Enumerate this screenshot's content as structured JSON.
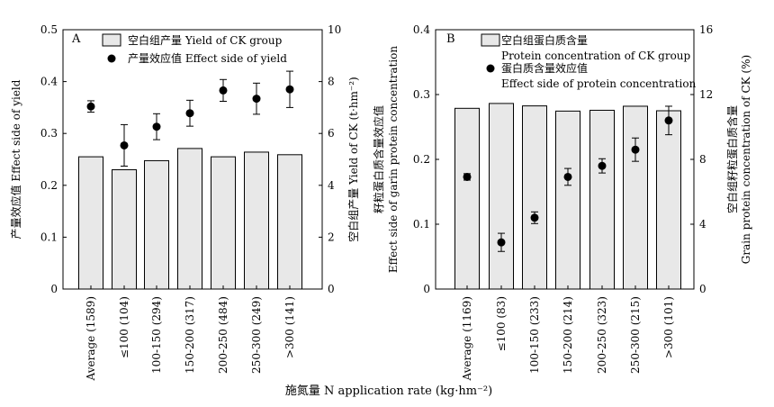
{
  "figure": {
    "xlabel": "施氮量 N application rate (kg·hm⁻²)",
    "colors": {
      "bar_fill": "#e8e8e8",
      "bar_stroke": "#000000",
      "point": "#000000"
    }
  },
  "chart_data": [
    {
      "type": "bar",
      "panel_label": "A",
      "categories": [
        "Average (1589)",
        "≤100 (104)",
        "100-150 (294)",
        "150-200 (317)",
        "200-250 (484)",
        "250-300 (249)",
        ">300 (141)"
      ],
      "ylabel_left": "产量效应值 Effect side of yield",
      "ylabel_right": "空白组产量 Yield of CK (t·hm⁻²)",
      "ylim_left": [
        0,
        0.5
      ],
      "yticks_left": [
        0,
        0.1,
        0.2,
        0.3,
        0.4,
        0.5
      ],
      "ytick_labels_left": [
        "0",
        "0.1",
        "0.2",
        "0.3",
        "0.4",
        "0.5"
      ],
      "ylim_right": [
        0,
        10
      ],
      "yticks_right": [
        0,
        2,
        4,
        6,
        8,
        10
      ],
      "ytick_labels_right": [
        "0",
        "2",
        "4",
        "6",
        "8",
        "10"
      ],
      "legend": [
        "空白组产量 Yield of  CK group",
        "产量效应值 Effect side of yield"
      ],
      "series": [
        {
          "name": "空白组产量 Yield of  CK group",
          "axis": "right",
          "kind": "bar",
          "values": [
            5.1,
            4.6,
            4.95,
            5.42,
            5.1,
            5.28,
            5.18
          ]
        },
        {
          "name": "产量效应值 Effect side of yield",
          "axis": "left",
          "kind": "point",
          "values": [
            0.352,
            0.277,
            0.313,
            0.339,
            0.383,
            0.367,
            0.385
          ],
          "err": [
            0.011,
            0.04,
            0.025,
            0.025,
            0.021,
            0.03,
            0.035
          ]
        }
      ]
    },
    {
      "type": "bar",
      "panel_label": "B",
      "categories": [
        "Average (1169)",
        "≤100 (83)",
        "100-150 (233)",
        "150-200 (214)",
        "200-250 (323)",
        "250-300 (215)",
        ">300 (101)"
      ],
      "ylabel_left": [
        "籽粒蛋白质含量效应值",
        "Effect side of garin protein concentration"
      ],
      "ylabel_right": [
        "空白组籽粒蛋白质含量",
        "Grain protein concentration of CK (%)"
      ],
      "ylim_left": [
        0,
        0.4
      ],
      "yticks_left": [
        0,
        0.1,
        0.2,
        0.3,
        0.4
      ],
      "ytick_labels_left": [
        "0",
        "0.1",
        "0.2",
        "0.3",
        "0.4"
      ],
      "ylim_right": [
        0,
        16
      ],
      "yticks_right": [
        0,
        4,
        8,
        12,
        16
      ],
      "ytick_labels_right": [
        "0",
        "4",
        "8",
        "12",
        "16"
      ],
      "legend": [
        [
          "空白组蛋白质含量",
          "Protein concentration of CK group"
        ],
        [
          "蛋白质含量效应值",
          "Effect side of protein concentration"
        ]
      ],
      "series": [
        {
          "name": "空白组蛋白质含量 Protein concentration of CK group",
          "axis": "right",
          "kind": "bar",
          "values": [
            11.15,
            11.45,
            11.3,
            10.98,
            11.03,
            11.28,
            11.0
          ]
        },
        {
          "name": "蛋白质含量效应值 Effect side of protein concentration",
          "axis": "left",
          "kind": "point",
          "values": [
            0.173,
            0.072,
            0.11,
            0.173,
            0.19,
            0.215,
            0.26
          ],
          "err": [
            0.005,
            0.014,
            0.009,
            0.013,
            0.011,
            0.018,
            0.022
          ]
        }
      ]
    }
  ]
}
